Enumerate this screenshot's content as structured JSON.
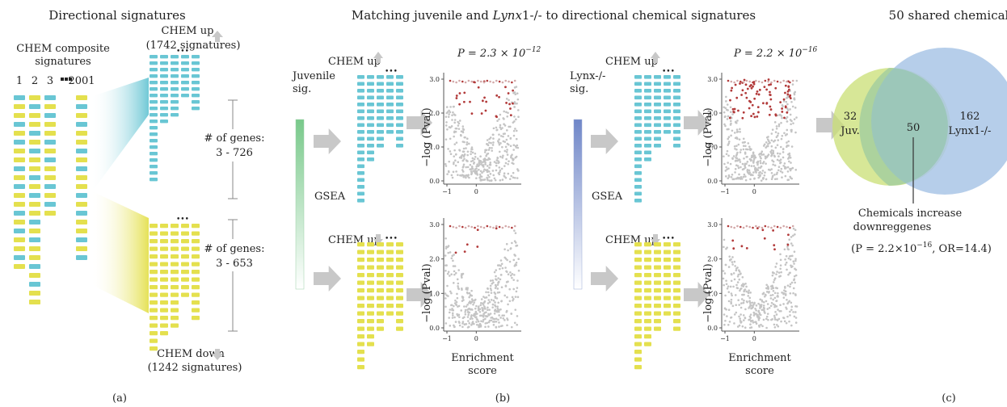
{
  "panel_a": {
    "title": "Directional signatures",
    "composite_label_1": "CHEM composite",
    "composite_label_2": "signatures",
    "col_labels": [
      "1",
      "2",
      "3",
      "2001"
    ],
    "up_title": "CHEM up",
    "up_count": "(1742 signatures)",
    "up_genes_label": "# of genes:",
    "up_genes_range": "3 - 726",
    "down_genes_label": "# of genes:",
    "down_genes_range": "3 - 653",
    "down_title": "CHEM down",
    "down_count": "(1242 signatures)",
    "caption": "(a)"
  },
  "panel_b": {
    "title_prefix": "Matching juvenile and ",
    "title_italic": "Lynx",
    "title_suffix": "1-/- to directional chemical signatures",
    "juvenile_label_1": "Juvenile",
    "juvenile_label_2": "sig.",
    "lynx_label_1": "Lynx-/-",
    "lynx_label_2": "sig.",
    "gsea": "GSEA",
    "chem_up": "CHEM up",
    "p_juv": "P = 2.3 × 10",
    "p_juv_exp": "−12",
    "p_lynx": "P = 2.2 × 10",
    "p_lynx_exp": "−16",
    "ylabel": "−log (Pval)",
    "xlabel_1": "Enrichment",
    "xlabel_2": "score",
    "y_ticks": [
      "0.0",
      "1.0",
      "2.0",
      "3.0"
    ],
    "x_ticks": [
      "−1",
      "0"
    ],
    "caption": "(b)"
  },
  "panel_c": {
    "title": "50 shared chemical",
    "left_count": "32",
    "left_label": "Juv.",
    "overlap_count": "50",
    "right_count": "162",
    "right_label": "Lynx1-/-",
    "note_1": "Chemicals increase",
    "note_2": "downreggenes",
    "stat": "(P = 2.2×10",
    "stat_exp": "−16",
    "stat_tail": ", OR=14.4)",
    "caption": "(c)"
  },
  "colors": {
    "cyan": "#69c6d4",
    "yellow": "#e4e04e",
    "venn_left": "#d9e88f",
    "venn_right": "#a9c6e6",
    "arrow": "#c8c8c8",
    "juvenile_bar": "#78c98a",
    "lynx_bar": "#6f86c8",
    "point_grey": "#c4c4c4",
    "point_red": "#b23a3a"
  }
}
